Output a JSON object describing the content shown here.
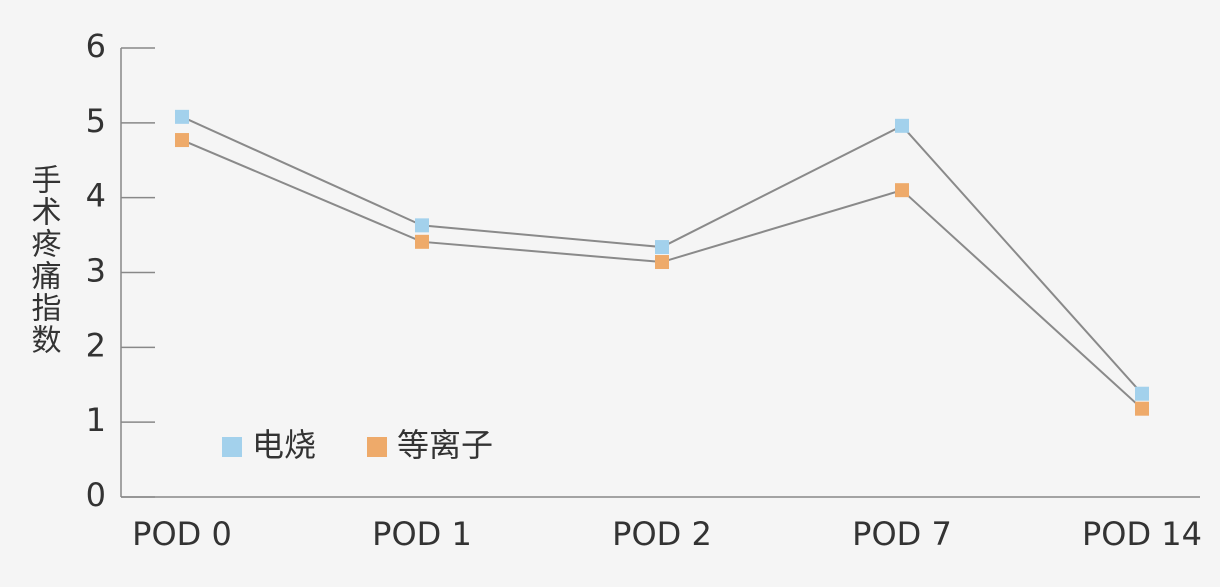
{
  "chart_data": {
    "type": "line",
    "ylabel": "手术疼痛指数",
    "categories": [
      "POD 0",
      "POD 1",
      "POD 2",
      "POD 7",
      "POD 14"
    ],
    "series": [
      {
        "name": "电烧",
        "color": "#a3d1ec",
        "values": [
          5.08,
          3.63,
          3.34,
          4.96,
          1.38
        ]
      },
      {
        "name": "等离子",
        "color": "#eeaa6a",
        "values": [
          4.77,
          3.41,
          3.14,
          4.1,
          1.18
        ]
      }
    ],
    "ylim": [
      0,
      6
    ],
    "yticks": [
      0,
      1,
      2,
      3,
      4,
      5,
      6
    ],
    "line_color": "#8a8a8a"
  }
}
